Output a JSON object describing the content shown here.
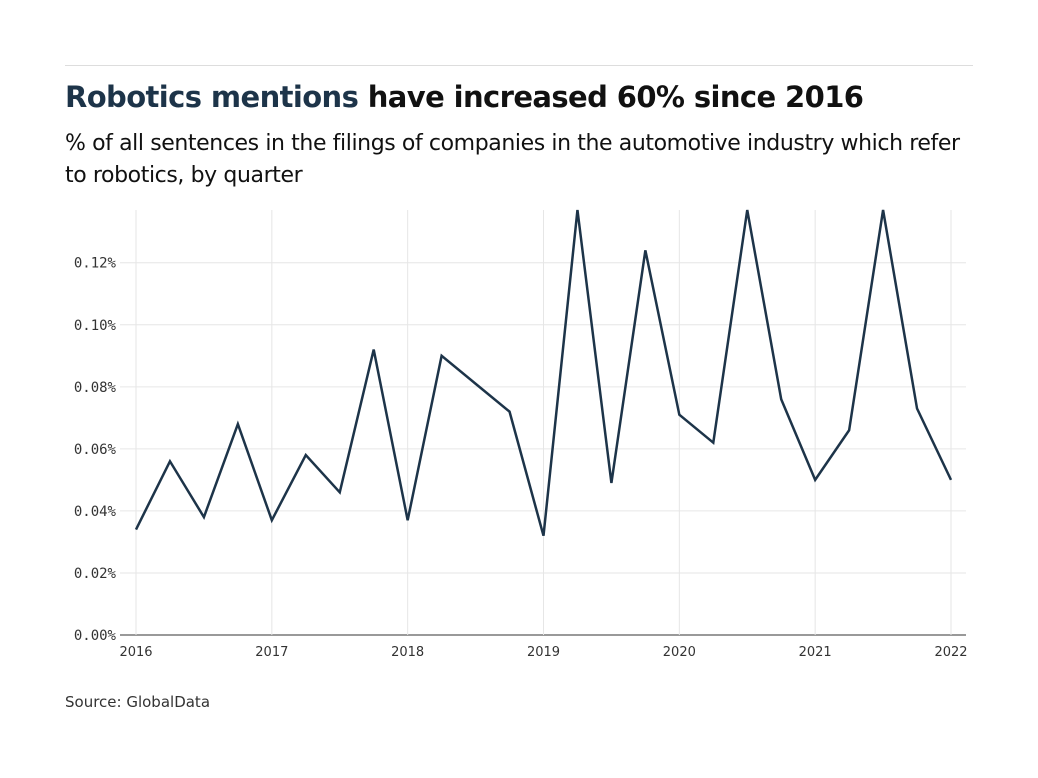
{
  "header": {
    "title_highlight": "Robotics mentions",
    "title_rest": " have increased 60% since 2016",
    "subtitle": "% of all sentences in the filings of companies in the automotive industry which refer to robotics, by quarter"
  },
  "source": "Source: GlobalData",
  "colors": {
    "line": "#1d3449",
    "highlight": "#1d3449",
    "grid": "#e6e6e6"
  },
  "chart_data": {
    "type": "line",
    "title": "Robotics mentions have increased 60% since 2016",
    "xlabel": "",
    "ylabel": "",
    "ylim": [
      0,
      0.137
    ],
    "xlim": [
      2016,
      2022
    ],
    "grid": true,
    "x_ticks": [
      "2016",
      "2017",
      "2018",
      "2019",
      "2020",
      "2021",
      "2022"
    ],
    "y_ticks": [
      "0.00%",
      "0.02%",
      "0.04%",
      "0.06%",
      "0.08%",
      "0.10%",
      "0.12%"
    ],
    "x": [
      "2016 Q1",
      "2016 Q2",
      "2016 Q3",
      "2016 Q4",
      "2017 Q1",
      "2017 Q2",
      "2017 Q3",
      "2017 Q4",
      "2018 Q1",
      "2018 Q2",
      "2018 Q3",
      "2018 Q4",
      "2019 Q1",
      "2019 Q2",
      "2019 Q3",
      "2019 Q4",
      "2020 Q1",
      "2020 Q2",
      "2020 Q3",
      "2020 Q4",
      "2021 Q1",
      "2021 Q2",
      "2021 Q3",
      "2021 Q4",
      "2022 Q1"
    ],
    "values": [
      0.034,
      0.056,
      0.038,
      0.068,
      0.037,
      0.058,
      0.046,
      0.092,
      0.037,
      0.09,
      0.081,
      0.072,
      0.032,
      0.137,
      0.049,
      0.124,
      0.071,
      0.062,
      0.137,
      0.076,
      0.05,
      0.066,
      0.137,
      0.073,
      0.05
    ]
  }
}
